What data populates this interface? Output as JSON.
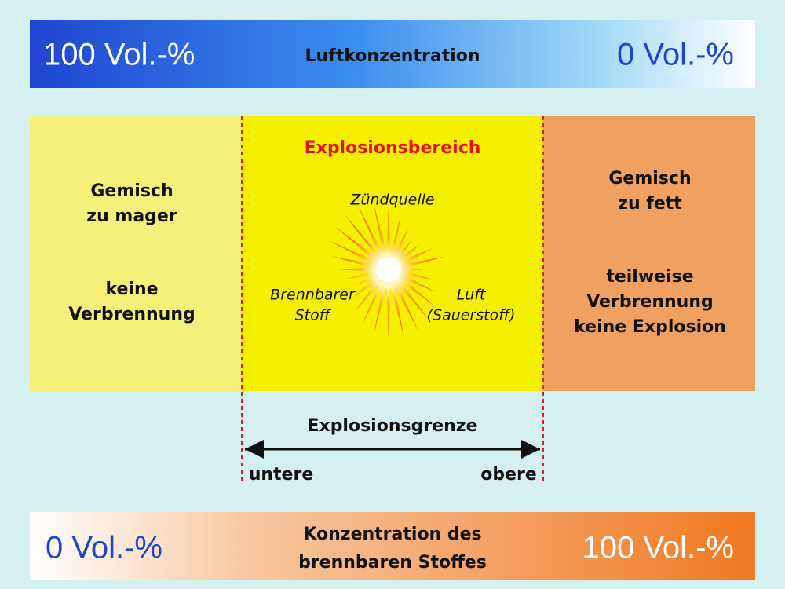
{
  "top_bar": {
    "left": "100 Vol.-%",
    "center": "Luftkonzentration",
    "right": "0 Vol.-%"
  },
  "left_box": {
    "title": [
      "Gemisch",
      "zu mager"
    ],
    "text": [
      "keine",
      "Verbrennung"
    ]
  },
  "middle_box": {
    "title": "Explosionsbereich",
    "ignition": "Zündquelle",
    "fuel": [
      "Brennbarer",
      "Stoff"
    ],
    "air": [
      "Luft",
      "(Sauerstoff)"
    ]
  },
  "right_box": {
    "title": [
      "Gemisch",
      "zu fett"
    ],
    "text": [
      "teilweise",
      "Verbrennung",
      "keine Explosion"
    ]
  },
  "limits": {
    "title": "Explosionsgrenze",
    "lower": "untere",
    "upper": "obere"
  },
  "bottom_bar": {
    "left": "0 Vol.-%",
    "center": [
      "Konzentration des",
      "brennbaren Stoffes"
    ],
    "right": "100 Vol.-%"
  }
}
